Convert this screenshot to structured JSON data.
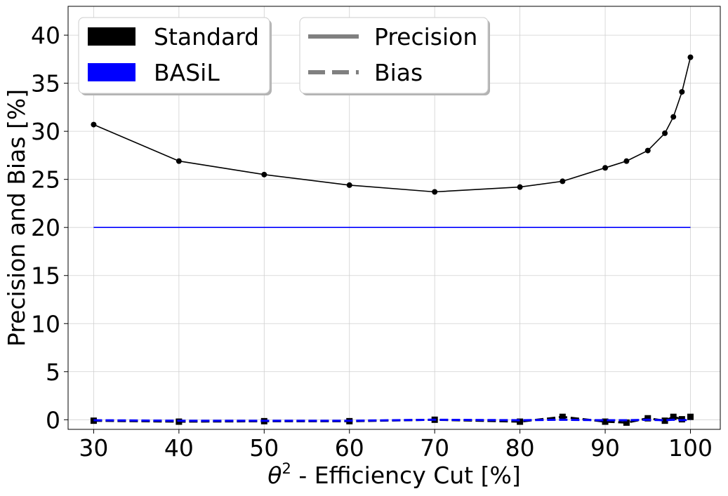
{
  "chart_data": {
    "type": "line",
    "xlabel_prefix": "θ",
    "xlabel_superscript": "2",
    "xlabel_rest": " - Efficiency Cut [%]",
    "ylabel": "Precision and Bias [%]",
    "xlim": [
      27,
      103.5
    ],
    "ylim": [
      -1,
      43
    ],
    "x_ticks": [
      30,
      40,
      50,
      60,
      70,
      80,
      90,
      100
    ],
    "y_ticks": [
      0,
      5,
      10,
      15,
      20,
      25,
      30,
      35,
      40
    ],
    "grid": true,
    "legend_methods": [
      {
        "label": "Standard",
        "color": "#000000"
      },
      {
        "label": "BASiL",
        "color": "#0000ff"
      }
    ],
    "legend_metrics": [
      {
        "label": "Precision",
        "style": "solid",
        "color": "#808080"
      },
      {
        "label": "Bias",
        "style": "dashed",
        "color": "#808080"
      }
    ],
    "series": [
      {
        "method": "Standard",
        "metric": "Precision",
        "color": "#000000",
        "line_style": "solid",
        "marker": "circle",
        "x": [
          30,
          40,
          50,
          60,
          70,
          80,
          85,
          90,
          92.5,
          95,
          97,
          98,
          99,
          100
        ],
        "y": [
          30.7,
          26.9,
          25.5,
          24.4,
          23.7,
          24.2,
          24.8,
          26.2,
          26.9,
          28.0,
          29.8,
          31.5,
          34.1,
          37.7
        ]
      },
      {
        "method": "BASiL",
        "metric": "Precision",
        "color": "#0000ff",
        "line_style": "solid",
        "marker": "none",
        "x": [
          30,
          100
        ],
        "y": [
          20.0,
          20.0
        ]
      },
      {
        "method": "Standard",
        "metric": "Bias",
        "color": "#000000",
        "line_style": "dashed",
        "marker": "square",
        "x": [
          30,
          40,
          50,
          60,
          70,
          80,
          85,
          90,
          92.5,
          95,
          97,
          98,
          99,
          100
        ],
        "y": [
          -0.1,
          -0.2,
          -0.15,
          -0.15,
          0.0,
          -0.2,
          0.3,
          -0.2,
          -0.3,
          0.15,
          -0.1,
          0.3,
          0.05,
          0.3
        ]
      },
      {
        "method": "BASiL",
        "metric": "Bias",
        "color": "#0000ff",
        "line_style": "dashed",
        "marker": "none",
        "x": [
          30,
          40,
          50,
          60,
          70,
          80,
          85,
          90,
          92.5,
          95,
          97,
          98,
          99,
          100
        ],
        "y": [
          -0.05,
          -0.1,
          -0.1,
          -0.1,
          0.0,
          -0.05,
          0.0,
          -0.05,
          -0.05,
          0.0,
          -0.05,
          0.0,
          -0.05,
          0.0
        ]
      }
    ]
  }
}
